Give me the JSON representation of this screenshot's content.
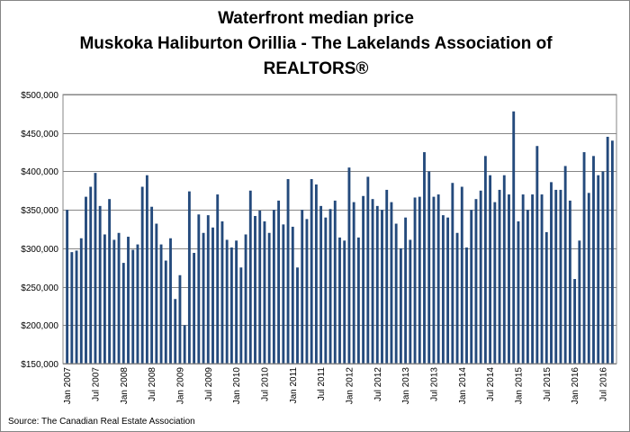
{
  "page": {
    "title_lines": [
      "Waterfront median price",
      "Muskoka Haliburton Orillia - The Lakelands Association of",
      "REALTORS®"
    ],
    "source": "Source: The Canadian Real Estate Association"
  },
  "chart_data": {
    "type": "bar",
    "title": "Waterfront median price Muskoka Haliburton Orillia - The Lakelands Association of REALTORS®",
    "xlabel": "",
    "ylabel": "",
    "ylim": [
      150000,
      500000
    ],
    "yticks": [
      150000,
      200000,
      250000,
      300000,
      350000,
      400000,
      450000,
      500000
    ],
    "ytick_labels": [
      "$150,000",
      "$200,000",
      "$250,000",
      "$300,000",
      "$350,000",
      "$400,000",
      "$450,000",
      "$500,000"
    ],
    "grid": true,
    "bar_color": "#244a7c",
    "grid_color": "#868686",
    "x_tick_labels": [
      "Jan 2007",
      "Jul 2007",
      "Jan 2008",
      "Jul 2008",
      "Jan 2009",
      "Jul 2009",
      "Jan 2010",
      "Jul 2010",
      "Jan 2011",
      "Jul 2011",
      "Jan 2012",
      "Jul 2012",
      "Jan 2013",
      "Jul 2013",
      "Jan 2014",
      "Jul 2014",
      "Jan 2015",
      "Jul 2015",
      "Jan 2016",
      "Jul 2016"
    ],
    "x_tick_every": 6,
    "start": "Jan 2007",
    "values": [
      350000,
      295000,
      297000,
      313000,
      367000,
      380000,
      398000,
      355000,
      318000,
      364000,
      311000,
      320000,
      281000,
      315000,
      298000,
      305000,
      380000,
      395000,
      354000,
      332000,
      305000,
      284000,
      313000,
      234000,
      265000,
      200000,
      374000,
      294000,
      344000,
      320000,
      343000,
      327000,
      370000,
      335000,
      311000,
      301000,
      310000,
      275000,
      318000,
      375000,
      342000,
      349000,
      335000,
      320000,
      350000,
      362000,
      331000,
      390000,
      328000,
      275000,
      350000,
      338000,
      390000,
      383000,
      355000,
      340000,
      351000,
      362000,
      314000,
      310000,
      405000,
      360000,
      314000,
      368000,
      393000,
      364000,
      355000,
      350000,
      376000,
      360000,
      332000,
      300000,
      340000,
      311000,
      366000,
      367000,
      425000,
      400000,
      367000,
      370000,
      343000,
      340000,
      385000,
      320000,
      380000,
      301000,
      350000,
      364000,
      375000,
      420000,
      395000,
      360000,
      376000,
      395000,
      370000,
      478000,
      335000,
      370000,
      350000,
      370000,
      433000,
      370000,
      321000,
      386000,
      376000,
      376000,
      407000,
      362000,
      260000,
      310000,
      425000,
      372000,
      420000,
      395000,
      400000,
      445000,
      440000
    ]
  }
}
